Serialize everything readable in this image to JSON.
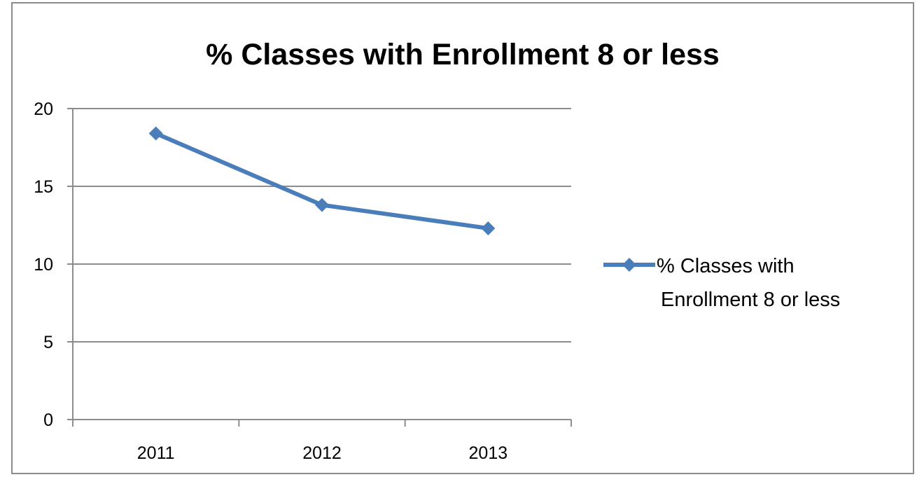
{
  "chart_data": {
    "type": "line",
    "title": "% Classes with Enrollment 8 or less",
    "xlabel": "",
    "ylabel": "",
    "categories": [
      "2011",
      "2012",
      "2013"
    ],
    "series": [
      {
        "name": "% Classes with Enrollment 8 or less",
        "legend_lines": [
          "% Classes with",
          "Enrollment 8 or less"
        ],
        "values": [
          18.4,
          13.8,
          12.3
        ],
        "color": "#4a7ebb",
        "marker": "diamond"
      }
    ],
    "yticks": [
      "0",
      "5",
      "10",
      "15",
      "20"
    ],
    "ylim": [
      0,
      20
    ],
    "grid": true,
    "legend_position": "right"
  }
}
